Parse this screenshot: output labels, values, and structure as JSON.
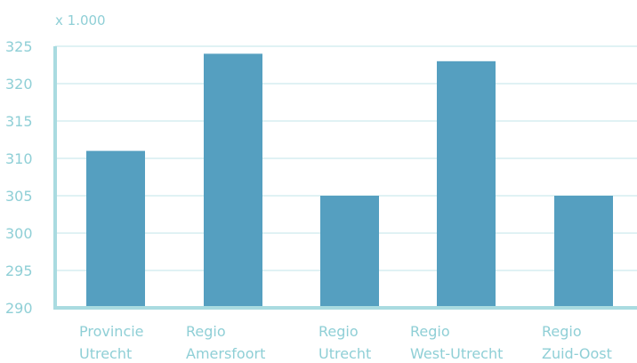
{
  "chart_data": {
    "type": "bar",
    "unit_label": "x 1.000",
    "categories": [
      [
        "Provincie",
        "Utrecht"
      ],
      [
        "Regio",
        "Amersfoort"
      ],
      [
        "Regio",
        "Utrecht"
      ],
      [
        "Regio",
        "West-Utrecht"
      ],
      [
        "Regio",
        "Zuid-Oost"
      ]
    ],
    "values": [
      311,
      324,
      305,
      323,
      305
    ],
    "ylim": [
      290,
      325
    ],
    "yticks": [
      290,
      295,
      300,
      305,
      310,
      315,
      320,
      325
    ],
    "grid": true,
    "colors": {
      "bar": "#559fc0",
      "grid": "#d6eef1",
      "axis": "#a9dbe0",
      "text": "#8fcfd6"
    }
  }
}
